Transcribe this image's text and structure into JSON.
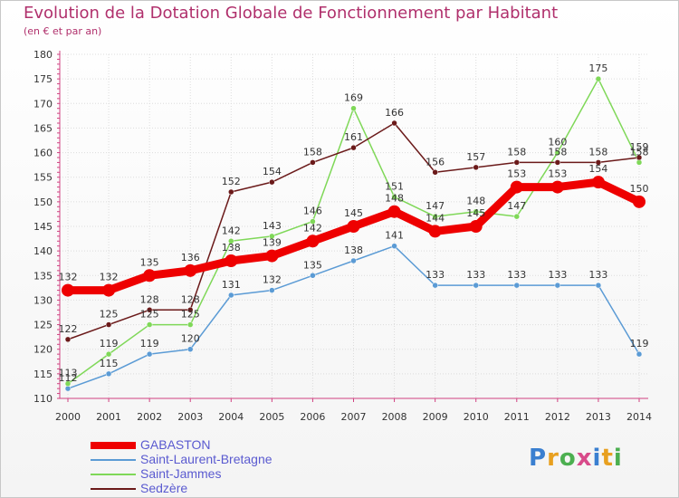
{
  "header": {
    "title": "Evolution de la Dotation Globale de Fonctionnement par Habitant",
    "subtitle": "(en € et par an)"
  },
  "logo": {
    "text": "Proxiti",
    "letters": [
      {
        "ch": "P",
        "color": "#3a7fd0"
      },
      {
        "ch": "r",
        "color": "#e8a020"
      },
      {
        "ch": "o",
        "color": "#4caf50"
      },
      {
        "ch": "x",
        "color": "#d84b8a"
      },
      {
        "ch": "i",
        "color": "#3a7fd0"
      },
      {
        "ch": "t",
        "color": "#e8a020"
      },
      {
        "ch": "i",
        "color": "#4caf50"
      }
    ]
  },
  "chart_data": {
    "type": "line",
    "title": "Evolution de la Dotation Globale de Fonctionnement par Habitant",
    "subtitle": "(en € et par an)",
    "x": [
      "2000",
      "2001",
      "2002",
      "2003",
      "2004",
      "2005",
      "2006",
      "2007",
      "2008",
      "2009",
      "2010",
      "2011",
      "2012",
      "2013",
      "2014"
    ],
    "ylim": [
      110,
      180
    ],
    "yticks": [
      110,
      115,
      120,
      125,
      130,
      135,
      140,
      145,
      150,
      155,
      160,
      165,
      170,
      175,
      180
    ],
    "grid": true,
    "legend_position": "bottom-left",
    "series": [
      {
        "name": "GABASTON",
        "color": "#ee0000",
        "emphasis": true,
        "values": [
          132,
          132,
          135,
          136,
          138,
          139,
          142,
          145,
          148,
          144,
          145,
          153,
          153,
          154,
          150
        ]
      },
      {
        "name": "Saint-Laurent-Bretagne",
        "color": "#5b9bd5",
        "values": [
          112,
          115,
          119,
          120,
          131,
          132,
          135,
          138,
          141,
          133,
          133,
          133,
          133,
          133,
          119
        ]
      },
      {
        "name": "Saint-Jammes",
        "color": "#7fd858",
        "values": [
          113,
          119,
          125,
          125,
          142,
          143,
          146,
          169,
          151,
          147,
          148,
          147,
          160,
          175,
          158
        ]
      },
      {
        "name": "Sedzère",
        "color": "#6b1a1a",
        "values": [
          122,
          125,
          128,
          128,
          152,
          154,
          158,
          161,
          166,
          156,
          157,
          158,
          158,
          158,
          159
        ]
      }
    ]
  }
}
